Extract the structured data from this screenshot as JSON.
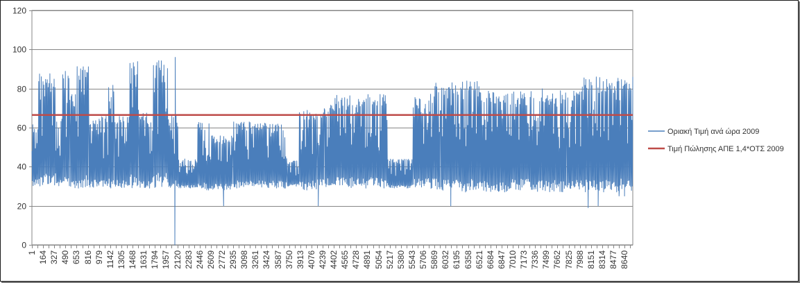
{
  "chart_data": {
    "type": "line",
    "title": "",
    "xlabel": "",
    "ylabel": "",
    "ylim": [
      0,
      120
    ],
    "yticks": [
      0,
      20,
      40,
      60,
      80,
      100,
      120
    ],
    "x_range": [
      1,
      8760
    ],
    "xticks": [
      1,
      164,
      327,
      490,
      653,
      816,
      979,
      1142,
      1305,
      1468,
      1631,
      1794,
      1957,
      2120,
      2283,
      2446,
      2609,
      2772,
      2935,
      3098,
      3261,
      3424,
      3587,
      3750,
      3913,
      4076,
      4239,
      4402,
      4565,
      4728,
      4891,
      5054,
      5217,
      5380,
      5543,
      5706,
      5869,
      6032,
      6195,
      6358,
      6521,
      6684,
      6847,
      7010,
      7173,
      7336,
      7499,
      7662,
      7825,
      7988,
      8151,
      8314,
      8477,
      8640
    ],
    "grid": true,
    "legend_position": "right",
    "series": [
      {
        "name": "Οριακή Τιμή ανά ώρα 2009",
        "color": "#4a7ebb",
        "segments": [
          {
            "from": 1,
            "to": 100,
            "min": 30,
            "max": 62
          },
          {
            "from": 100,
            "to": 250,
            "min": 30,
            "max": 89
          },
          {
            "from": 250,
            "to": 350,
            "min": 30,
            "max": 89
          },
          {
            "from": 350,
            "to": 450,
            "min": 30,
            "max": 65
          },
          {
            "from": 450,
            "to": 560,
            "min": 30,
            "max": 92
          },
          {
            "from": 560,
            "to": 660,
            "min": 29,
            "max": 78
          },
          {
            "from": 660,
            "to": 800,
            "min": 29,
            "max": 92
          },
          {
            "from": 800,
            "to": 830,
            "min": 29,
            "max": 93
          },
          {
            "from": 830,
            "to": 1120,
            "min": 29,
            "max": 66
          },
          {
            "from": 1120,
            "to": 1200,
            "min": 29,
            "max": 86
          },
          {
            "from": 1200,
            "to": 1430,
            "min": 29,
            "max": 66
          },
          {
            "from": 1430,
            "to": 1560,
            "min": 28,
            "max": 96
          },
          {
            "from": 1560,
            "to": 1760,
            "min": 29,
            "max": 68
          },
          {
            "from": 1760,
            "to": 1990,
            "min": 29,
            "max": 96
          },
          {
            "from": 1990,
            "to": 2140,
            "min": 29,
            "max": 66
          },
          {
            "from": 2140,
            "to": 2420,
            "min": 29,
            "max": 44
          },
          {
            "from": 2420,
            "to": 2620,
            "min": 28,
            "max": 63
          },
          {
            "from": 2620,
            "to": 2930,
            "min": 28,
            "max": 56
          },
          {
            "from": 2930,
            "to": 3420,
            "min": 29,
            "max": 63
          },
          {
            "from": 3420,
            "to": 3720,
            "min": 29,
            "max": 62
          },
          {
            "from": 3720,
            "to": 3900,
            "min": 30,
            "max": 43
          },
          {
            "from": 3900,
            "to": 4160,
            "min": 28,
            "max": 70
          },
          {
            "from": 4160,
            "to": 4270,
            "min": 29,
            "max": 70
          },
          {
            "from": 4270,
            "to": 4420,
            "min": 29,
            "max": 72
          },
          {
            "from": 4420,
            "to": 4800,
            "min": 29,
            "max": 77
          },
          {
            "from": 4800,
            "to": 5190,
            "min": 29,
            "max": 77
          },
          {
            "from": 5190,
            "to": 5560,
            "min": 29,
            "max": 44
          },
          {
            "from": 5560,
            "to": 5800,
            "min": 29,
            "max": 76
          },
          {
            "from": 5800,
            "to": 5960,
            "min": 28,
            "max": 84
          },
          {
            "from": 5960,
            "to": 6240,
            "min": 27,
            "max": 83
          },
          {
            "from": 6240,
            "to": 6580,
            "min": 27,
            "max": 84
          },
          {
            "from": 6580,
            "to": 7000,
            "min": 27,
            "max": 79
          },
          {
            "from": 7000,
            "to": 7340,
            "min": 28,
            "max": 79
          },
          {
            "from": 7340,
            "to": 7800,
            "min": 27,
            "max": 80
          },
          {
            "from": 7800,
            "to": 8050,
            "min": 28,
            "max": 81
          },
          {
            "from": 8050,
            "to": 8760,
            "min": 27,
            "max": 86
          }
        ],
        "points": [
          {
            "x": 2085,
            "y": 0
          },
          {
            "x": 2090,
            "y": 96
          },
          {
            "x": 2796,
            "y": 20
          },
          {
            "x": 4175,
            "y": 20
          },
          {
            "x": 6107,
            "y": 20
          },
          {
            "x": 8110,
            "y": 19
          },
          {
            "x": 8255,
            "y": 20
          },
          {
            "x": 8560,
            "y": 25
          },
          {
            "x": 8640,
            "y": 25
          },
          {
            "x": 8760,
            "y": 86
          }
        ]
      },
      {
        "name": "Τιμή Πώλησης ΑΠΕ 1,4*ΟΤΣ 2009",
        "color": "#be4b48",
        "values": [
          66.5,
          66.5
        ]
      }
    ]
  }
}
